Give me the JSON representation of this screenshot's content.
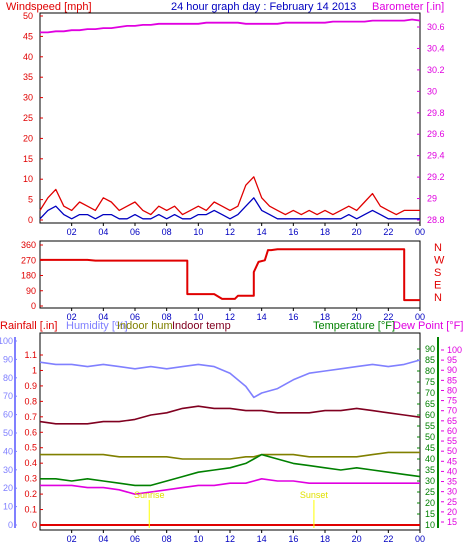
{
  "colors": {
    "wind": "#e00000",
    "gust_avg": "#0000c0",
    "barometer": "#e000e0",
    "direction": "#e00000",
    "rain": "#e00000",
    "humidity": "#8080ff",
    "indoor_hum": "#808000",
    "indoor_temp": "#800020",
    "temperature": "#008000",
    "dewpoint": "#e000e0",
    "axis_text_blue": "#0000c0"
  },
  "chart_data": [
    {
      "type": "line",
      "id": "wind-barometer",
      "title": "24 hour graph day : February 14 2013",
      "ylabel": "Windspeed [mph]",
      "y2label": "Barometer [.in]",
      "ylim": [
        0,
        50
      ],
      "y2lim": [
        28.8,
        30.7
      ],
      "yticks": [
        "50",
        "45",
        "40",
        "35",
        "30",
        "25",
        "20",
        "15",
        "10",
        "5",
        "0"
      ],
      "y2ticks": [
        "30.6",
        "30.4",
        "30.2",
        "30",
        "29.8",
        "29.6",
        "29.4",
        "29.2",
        "29",
        "28.8"
      ],
      "xticks": [
        "02",
        "04",
        "06",
        "08",
        "10",
        "12",
        "14",
        "16",
        "18",
        "20",
        "22",
        "00"
      ],
      "x_hours": [
        0,
        0.5,
        1,
        1.5,
        2,
        2.5,
        3,
        3.5,
        4,
        4.5,
        5,
        5.5,
        6,
        6.5,
        7,
        7.5,
        8,
        8.5,
        9,
        9.5,
        10,
        10.5,
        11,
        11.5,
        12,
        12.5,
        13,
        13.5,
        14,
        14.5,
        15,
        15.5,
        16,
        16.5,
        17,
        17.5,
        18,
        18.5,
        19,
        19.5,
        20,
        20.5,
        21,
        21.5,
        22,
        22.5,
        23,
        23.5,
        24
      ],
      "series": [
        {
          "key": "wind",
          "axis": "y",
          "values": [
            3,
            6,
            8,
            4,
            3,
            5,
            4,
            3,
            6,
            5,
            3,
            4,
            5,
            3,
            2,
            4,
            3,
            4,
            2,
            3,
            4,
            3,
            5,
            4,
            3,
            4,
            9,
            11,
            6,
            4,
            3,
            2,
            3,
            2,
            3,
            2,
            3,
            2,
            3,
            4,
            3,
            5,
            7,
            4,
            3,
            2,
            3,
            3,
            3
          ]
        },
        {
          "key": "gust_avg",
          "axis": "y",
          "values": [
            1,
            3,
            4,
            2,
            1,
            2,
            2,
            1,
            2,
            2,
            1,
            1,
            2,
            1,
            1,
            2,
            1,
            2,
            1,
            1,
            2,
            2,
            3,
            2,
            1,
            2,
            4,
            6,
            3,
            2,
            1,
            1,
            1,
            1,
            1,
            1,
            1,
            1,
            1,
            2,
            1,
            2,
            3,
            2,
            1,
            1,
            1,
            1,
            1
          ]
        },
        {
          "key": "barometer",
          "axis": "y2",
          "values": [
            30.55,
            30.55,
            30.56,
            30.56,
            30.57,
            30.57,
            30.58,
            30.58,
            30.59,
            30.59,
            30.6,
            30.61,
            30.61,
            30.62,
            30.62,
            30.63,
            30.63,
            30.63,
            30.63,
            30.63,
            30.63,
            30.64,
            30.64,
            30.64,
            30.64,
            30.64,
            30.63,
            30.63,
            30.63,
            30.63,
            30.63,
            30.64,
            30.64,
            30.64,
            30.64,
            30.64,
            30.64,
            30.65,
            30.65,
            30.65,
            30.65,
            30.65,
            30.66,
            30.66,
            30.66,
            30.66,
            30.66,
            30.67,
            30.66
          ]
        }
      ]
    },
    {
      "type": "line",
      "id": "wind-direction",
      "ylim": [
        0,
        360
      ],
      "yticks": [
        "360",
        "270",
        "180",
        "90",
        "0"
      ],
      "y2ticks": [
        "N",
        "W",
        "S",
        "E",
        "N"
      ],
      "xticks": [
        "02",
        "04",
        "06",
        "08",
        "10",
        "12",
        "14",
        "16",
        "18",
        "20",
        "22",
        "00"
      ],
      "series": [
        {
          "key": "direction",
          "x": [
            0,
            3,
            3.5,
            9.3,
            9.3,
            11,
            11.5,
            12.3,
            12.5,
            13.5,
            13.5,
            13.8,
            14.2,
            14.4,
            14.6,
            15.0,
            23.0,
            23.0,
            24
          ],
          "values": [
            272,
            272,
            268,
            268,
            70,
            70,
            42,
            42,
            60,
            60,
            200,
            260,
            270,
            330,
            330,
            335,
            335,
            35,
            35
          ]
        }
      ]
    },
    {
      "type": "line",
      "id": "temp-humidity",
      "labels": {
        "rain": "Rainfall [.in]",
        "humidity": "Humidity [%]",
        "indoor_hum": "Indoor hum",
        "indoor_temp": "Indoor temp",
        "temperature": "Temperature [°F]",
        "dewpoint": "Dew Point [°F]"
      },
      "rain_ticks": [
        "1.1",
        "1",
        "0.9",
        "0.8",
        "0.7",
        "0.6",
        "0.5",
        "0.4",
        "0.3",
        "0.2",
        "0.1",
        "0"
      ],
      "hum_ticks": [
        "100",
        "90",
        "80",
        "70",
        "60",
        "50",
        "40",
        "30",
        "20",
        "10",
        "0"
      ],
      "temp_ticks": [
        "90",
        "85",
        "80",
        "75",
        "70",
        "65",
        "60",
        "55",
        "50",
        "45",
        "40",
        "35",
        "30",
        "25",
        "20",
        "15",
        "10"
      ],
      "dew_ticks": [
        "100",
        "95",
        "90",
        "85",
        "80",
        "75",
        "70",
        "65",
        "60",
        "55",
        "50",
        "45",
        "40",
        "35",
        "30",
        "25",
        "20",
        "15"
      ],
      "xticks": [
        "02",
        "04",
        "06",
        "08",
        "10",
        "12",
        "14",
        "16",
        "18",
        "20",
        "22",
        "00"
      ],
      "x_hours": [
        0,
        1,
        2,
        3,
        4,
        5,
        6,
        7,
        8,
        9,
        10,
        11,
        12,
        13,
        13.5,
        14,
        15,
        16,
        17,
        18,
        19,
        20,
        21,
        22,
        23,
        24
      ],
      "series": [
        {
          "key": "humidity",
          "axis": "temp",
          "values": [
            84,
            83,
            83,
            82,
            83,
            82,
            81,
            82,
            81,
            82,
            83,
            82,
            79,
            73,
            68,
            70,
            72,
            76,
            79,
            80,
            81,
            82,
            83,
            82,
            83,
            85
          ]
        },
        {
          "key": "indoor_temp",
          "axis": "temp",
          "values": [
            57,
            56,
            56,
            56,
            57,
            57,
            58,
            60,
            61,
            63,
            64,
            63,
            63,
            62,
            62,
            62,
            61,
            61,
            61,
            62,
            62,
            63,
            62,
            61,
            60,
            59
          ]
        },
        {
          "key": "indoor_hum",
          "axis": "temp",
          "values": [
            42,
            42,
            42,
            42,
            42,
            41,
            41,
            41,
            41,
            40,
            40,
            40,
            40,
            41,
            41,
            42,
            42,
            42,
            41,
            41,
            41,
            41,
            42,
            43,
            43,
            43
          ]
        },
        {
          "key": "temperature",
          "axis": "temp",
          "values": [
            31,
            31,
            30,
            31,
            30,
            29,
            28,
            28,
            30,
            32,
            34,
            35,
            36,
            38,
            40,
            42,
            40,
            38,
            37,
            36,
            35,
            36,
            35,
            34,
            33,
            32
          ]
        },
        {
          "key": "dewpoint",
          "axis": "temp",
          "values": [
            28,
            28,
            28,
            27,
            27,
            26,
            24,
            25,
            26,
            27,
            28,
            28,
            29,
            29,
            30,
            31,
            30,
            30,
            29,
            29,
            29,
            29,
            29,
            29,
            29,
            29
          ]
        },
        {
          "key": "rain",
          "axis": "rain",
          "values": [
            0,
            0,
            0,
            0,
            0,
            0,
            0,
            0,
            0,
            0,
            0,
            0,
            0,
            0,
            0,
            0,
            0,
            0,
            0,
            0,
            0,
            0,
            0,
            0,
            0,
            0
          ]
        }
      ],
      "annotations": [
        {
          "label": "Sunrise",
          "hour": 6.9
        },
        {
          "label": "Sunset",
          "hour": 17.3
        }
      ]
    }
  ]
}
